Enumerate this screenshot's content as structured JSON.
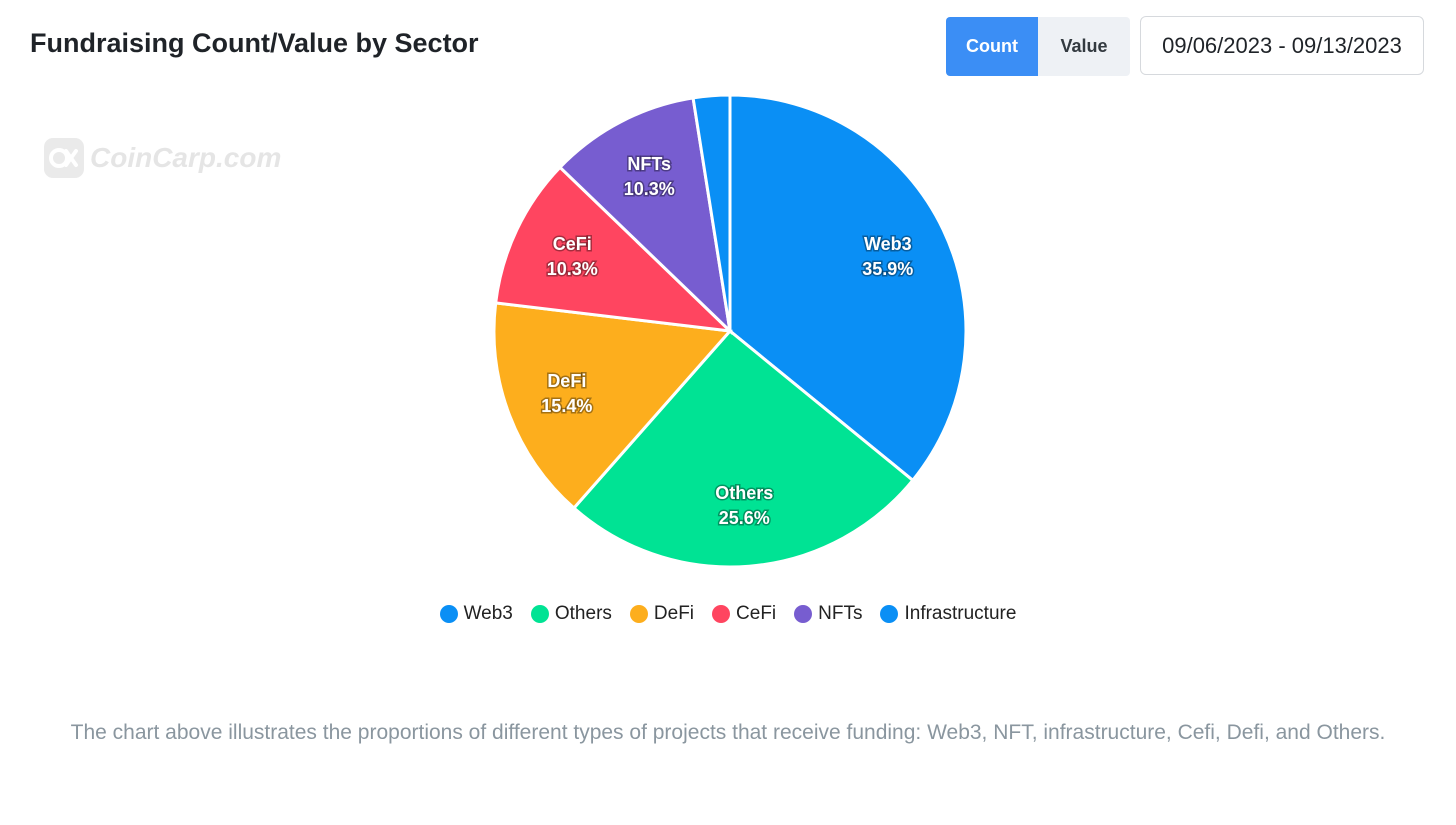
{
  "header": {
    "title": "Fundraising Count/Value by Sector",
    "toggle_count": "Count",
    "toggle_value": "Value",
    "date_range": "09/06/2023 - 09/13/2023"
  },
  "watermark": {
    "text": "CoinCarp.com"
  },
  "chart_data": {
    "type": "pie",
    "categories": [
      "Web3",
      "Others",
      "DeFi",
      "CeFi",
      "NFTs",
      "Infrastructure"
    ],
    "values": [
      35.9,
      25.6,
      15.4,
      10.3,
      10.3,
      2.5
    ],
    "labels": [
      "35.9%",
      "25.6%",
      "15.4%",
      "10.3%",
      "10.3%",
      ""
    ],
    "colors": [
      "#0a8ff5",
      "#00e394",
      "#fdae1d",
      "#ff4560",
      "#775dd0",
      "#0a8ff5"
    ],
    "legend": "bottom"
  },
  "caption": "The chart above illustrates the proportions of different types of projects that receive funding: Web3, NFT, infrastructure, Cefi, Defi, and Others."
}
